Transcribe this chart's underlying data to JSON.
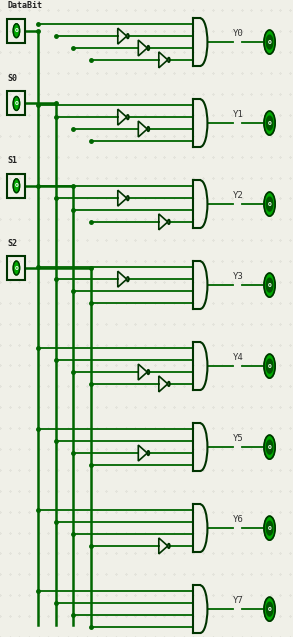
{
  "bg_color": "#f0f0e8",
  "line_color": "#006600",
  "dark_green": "#003300",
  "output_circle_color": "#00aa00",
  "inputs": [
    "DataBit",
    "S0",
    "S1",
    "S2"
  ],
  "outputs": [
    "Y0",
    "Y1",
    "Y2",
    "Y3",
    "Y4",
    "Y5",
    "Y6",
    "Y7"
  ],
  "fig_width": 2.93,
  "fig_height": 6.37,
  "dpi": 100,
  "inverted": [
    [
      true,
      true,
      true
    ],
    [
      true,
      true,
      false
    ],
    [
      true,
      false,
      true
    ],
    [
      true,
      false,
      false
    ],
    [
      false,
      true,
      true
    ],
    [
      false,
      true,
      false
    ],
    [
      false,
      false,
      true
    ],
    [
      false,
      false,
      false
    ]
  ]
}
